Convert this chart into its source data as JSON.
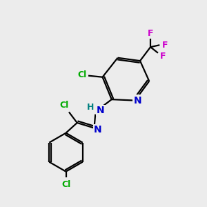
{
  "background_color": "#ececec",
  "bond_color": "#000000",
  "N_color": "#0000cc",
  "Cl_color": "#00aa00",
  "F_color": "#cc00cc",
  "H_color": "#008080",
  "bond_width": 1.6,
  "figsize": [
    3.0,
    3.0
  ],
  "dpi": 100,
  "xlim": [
    0,
    10
  ],
  "ylim": [
    0,
    10
  ]
}
